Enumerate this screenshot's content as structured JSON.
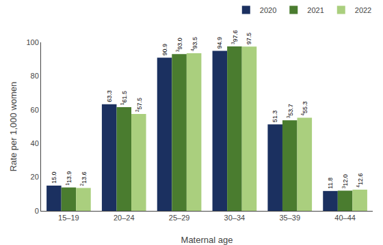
{
  "chart_data": {
    "type": "bar",
    "categories": [
      "15–19",
      "20–24",
      "25–29",
      "30–34",
      "35–39",
      "40–44"
    ],
    "series": [
      {
        "name": "2020",
        "color": "#1b3060",
        "values": [
          15.0,
          63.3,
          90.9,
          94.9,
          51.3,
          11.8
        ],
        "value_labels": [
          "15.0",
          "63.3",
          "90.9",
          "94.9",
          "51.3",
          "11.8"
        ]
      },
      {
        "name": "2021",
        "color": "#4a7c2f",
        "values": [
          13.9,
          61.5,
          93.0,
          97.6,
          53.7,
          12.0
        ],
        "value_labels": [
          "13.9",
          "61.5",
          "93.0",
          "97.6",
          "53.7",
          "12.0"
        ],
        "superscripts": [
          "1",
          "1",
          "3",
          "3",
          "3",
          "3"
        ]
      },
      {
        "name": "2022",
        "color": "#aacf7e",
        "values": [
          13.6,
          57.5,
          93.5,
          97.5,
          55.3,
          12.6
        ],
        "value_labels": [
          "13.6",
          "57.5",
          "93.5",
          "97.5",
          "55.3",
          "12.6"
        ],
        "superscripts": [
          "2",
          "2",
          "4",
          null,
          "4",
          "4"
        ]
      }
    ],
    "xlabel": "Maternal age",
    "ylabel": "Rate per 1,000 women",
    "ylim": [
      0,
      100
    ],
    "yticks": [
      0,
      20,
      40,
      60,
      80,
      100
    ],
    "data_labels": true,
    "legend": "upper right",
    "grid": false
  }
}
